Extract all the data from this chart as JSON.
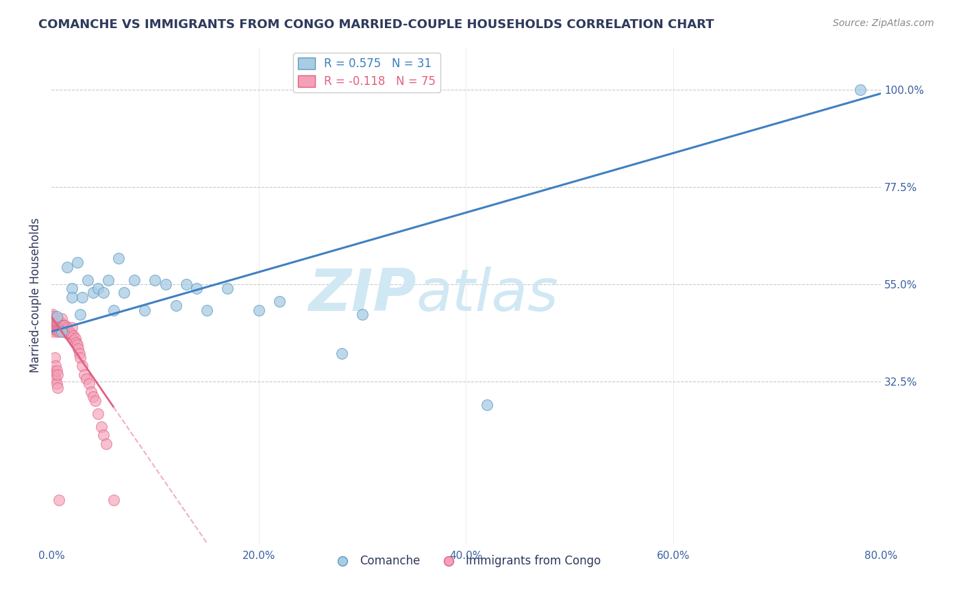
{
  "title": "COMANCHE VS IMMIGRANTS FROM CONGO MARRIED-COUPLE HOUSEHOLDS CORRELATION CHART",
  "source": "Source: ZipAtlas.com",
  "ylabel": "Married-couple Households",
  "xlabel": "",
  "xlim": [
    0.0,
    0.8
  ],
  "ylim": [
    -0.05,
    1.1
  ],
  "xticks": [
    0.0,
    0.2,
    0.4,
    0.6,
    0.8
  ],
  "xtick_labels": [
    "0.0%",
    "20.0%",
    "40.0%",
    "60.0%",
    "80.0%"
  ],
  "yticks": [
    0.325,
    0.55,
    0.775,
    1.0
  ],
  "ytick_labels": [
    "32.5%",
    "55.0%",
    "77.5%",
    "100.0%"
  ],
  "comanche_R": 0.575,
  "comanche_N": 31,
  "congo_R": -0.118,
  "congo_N": 75,
  "comanche_color": "#a8cce4",
  "congo_color": "#f4a0b8",
  "comanche_edge_color": "#5b9cc4",
  "congo_edge_color": "#e06080",
  "comanche_line_color": "#4080c0",
  "congo_line_solid_color": "#e06080",
  "congo_line_dash_color": "#f0b0c8",
  "watermark_zip": "ZIP",
  "watermark_atlas": "atlas",
  "watermark_color": "#d0e8f4",
  "background_color": "#ffffff",
  "grid_color": "#c8c8c8",
  "title_color": "#2e3a5c",
  "tick_color": "#3a5fa0",
  "legend_R_color": "#3a7ebf",
  "legend_R_color2": "#e06080",
  "comanche_x": [
    0.005,
    0.01,
    0.015,
    0.02,
    0.02,
    0.025,
    0.028,
    0.03,
    0.035,
    0.04,
    0.045,
    0.05,
    0.055,
    0.06,
    0.065,
    0.07,
    0.08,
    0.09,
    0.1,
    0.11,
    0.12,
    0.13,
    0.14,
    0.15,
    0.17,
    0.2,
    0.22,
    0.28,
    0.3,
    0.42,
    0.78
  ],
  "comanche_y": [
    0.475,
    0.44,
    0.59,
    0.54,
    0.52,
    0.6,
    0.48,
    0.52,
    0.56,
    0.53,
    0.54,
    0.53,
    0.56,
    0.49,
    0.61,
    0.53,
    0.56,
    0.49,
    0.56,
    0.55,
    0.5,
    0.55,
    0.54,
    0.49,
    0.54,
    0.49,
    0.51,
    0.39,
    0.48,
    0.27,
    1.0
  ],
  "congo_x": [
    0.001,
    0.001,
    0.001,
    0.001,
    0.001,
    0.001,
    0.002,
    0.002,
    0.002,
    0.002,
    0.002,
    0.002,
    0.002,
    0.003,
    0.003,
    0.003,
    0.003,
    0.003,
    0.004,
    0.004,
    0.004,
    0.004,
    0.005,
    0.005,
    0.005,
    0.005,
    0.006,
    0.006,
    0.006,
    0.006,
    0.007,
    0.007,
    0.007,
    0.008,
    0.008,
    0.008,
    0.009,
    0.009,
    0.01,
    0.01,
    0.01,
    0.011,
    0.011,
    0.012,
    0.012,
    0.013,
    0.013,
    0.014,
    0.015,
    0.015,
    0.016,
    0.017,
    0.018,
    0.019,
    0.02,
    0.021,
    0.022,
    0.023,
    0.024,
    0.025,
    0.026,
    0.027,
    0.028,
    0.03,
    0.032,
    0.034,
    0.036,
    0.038,
    0.04,
    0.042,
    0.045,
    0.048,
    0.05,
    0.053,
    0.06
  ],
  "congo_y": [
    0.47,
    0.46,
    0.475,
    0.45,
    0.48,
    0.445,
    0.46,
    0.465,
    0.45,
    0.475,
    0.455,
    0.44,
    0.465,
    0.455,
    0.465,
    0.445,
    0.47,
    0.455,
    0.455,
    0.465,
    0.45,
    0.46,
    0.445,
    0.46,
    0.455,
    0.47,
    0.45,
    0.46,
    0.44,
    0.46,
    0.455,
    0.445,
    0.465,
    0.45,
    0.46,
    0.44,
    0.455,
    0.445,
    0.46,
    0.45,
    0.47,
    0.445,
    0.455,
    0.44,
    0.455,
    0.445,
    0.455,
    0.44,
    0.445,
    0.45,
    0.435,
    0.44,
    0.435,
    0.435,
    0.45,
    0.43,
    0.42,
    0.425,
    0.415,
    0.41,
    0.4,
    0.39,
    0.38,
    0.36,
    0.34,
    0.33,
    0.32,
    0.3,
    0.29,
    0.28,
    0.25,
    0.22,
    0.2,
    0.18,
    0.05
  ],
  "congo_extra_low_x": [
    0.002,
    0.003,
    0.003,
    0.004,
    0.004,
    0.005,
    0.005,
    0.006,
    0.006,
    0.007
  ],
  "congo_extra_low_y": [
    0.35,
    0.38,
    0.34,
    0.36,
    0.33,
    0.35,
    0.32,
    0.34,
    0.31,
    0.05
  ]
}
